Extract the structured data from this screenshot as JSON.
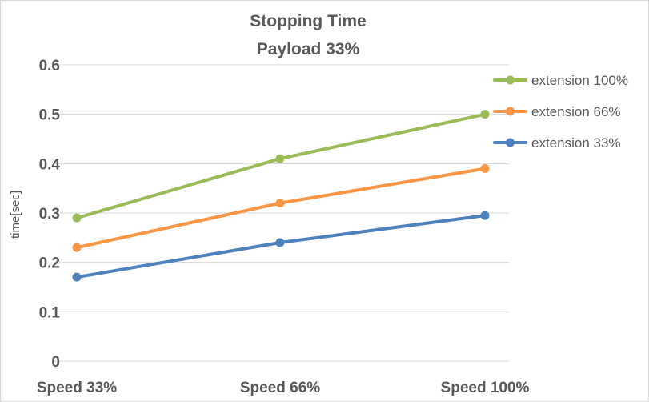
{
  "chart_data": {
    "type": "line",
    "title_lines": [
      "Stopping Time",
      "Payload 33%"
    ],
    "xlabel": "",
    "ylabel": "time[sec]",
    "categories": [
      "Speed 33%",
      "Speed 66%",
      "Speed 100%"
    ],
    "ylim": [
      0,
      0.6
    ],
    "yticks": [
      "0",
      "0.1",
      "0.2",
      "0.3",
      "0.4",
      "0.5",
      "0.6"
    ],
    "grid": true,
    "legend_position": "right",
    "series": [
      {
        "name": "extension 100%",
        "color": "#9bbb59",
        "values": [
          0.29,
          0.41,
          0.5
        ]
      },
      {
        "name": "extension 66%",
        "color": "#f79646",
        "values": [
          0.23,
          0.32,
          0.39
        ]
      },
      {
        "name": "extension 33%",
        "color": "#4f81bd",
        "values": [
          0.17,
          0.24,
          0.295
        ]
      }
    ]
  }
}
